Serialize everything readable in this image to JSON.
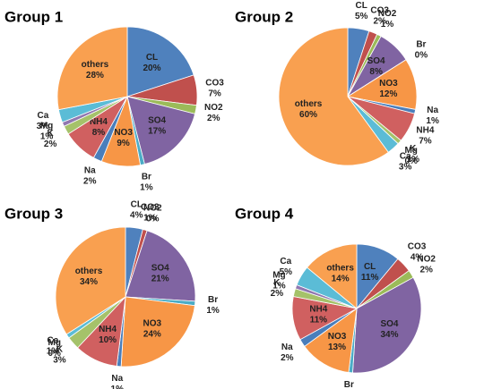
{
  "chart_data": [
    {
      "type": "pie",
      "title": "Group 1",
      "categories": [
        "CL",
        "CO3",
        "NO2",
        "SO4",
        "Br",
        "NO3",
        "Na",
        "NH4",
        "K",
        "Mg",
        "Ca",
        "others"
      ],
      "values": [
        20,
        7,
        2,
        17,
        1,
        9,
        2,
        8,
        2,
        1,
        3,
        28
      ],
      "value_labels": [
        "20%",
        "7%",
        "2%",
        "17%",
        "1%",
        "9%",
        "2%",
        "8%",
        "2%",
        "1%",
        "3%",
        "28%"
      ],
      "colors": [
        "#4f81bd",
        "#c0504d",
        "#9bbb59",
        "#8064a2",
        "#4bacc6",
        "#f79646",
        "#4a7ebb",
        "#d06060",
        "#a5c26a",
        "#9077b0",
        "#5bbcd6",
        "#f9a050"
      ]
    },
    {
      "type": "pie",
      "title": "Group 2",
      "categories": [
        "CL",
        "CO3",
        "NO2",
        "SO4",
        "Br",
        "NO3",
        "Na",
        "NH4",
        "K",
        "Mg",
        "Ca",
        "others"
      ],
      "values": [
        5,
        2,
        1,
        8,
        0,
        12,
        1,
        7,
        1,
        0,
        3,
        60
      ],
      "value_labels": [
        "5%",
        "2%",
        "1%",
        "8%",
        "0%",
        "12%",
        "1%",
        "7%",
        "1%",
        "0%",
        "3%",
        "60%"
      ],
      "colors": [
        "#4f81bd",
        "#c0504d",
        "#9bbb59",
        "#8064a2",
        "#4bacc6",
        "#f79646",
        "#4a7ebb",
        "#d06060",
        "#a5c26a",
        "#9077b0",
        "#5bbcd6",
        "#f9a050"
      ]
    },
    {
      "type": "pie",
      "title": "Group 3",
      "categories": [
        "CL",
        "CO3",
        "NO2",
        "SO4",
        "Br",
        "NO3",
        "Na",
        "NH4",
        "K",
        "Mg",
        "Ca",
        "others"
      ],
      "values": [
        4,
        1,
        0,
        21,
        1,
        24,
        1,
        10,
        3,
        0,
        1,
        34
      ],
      "value_labels": [
        "4%",
        "1%",
        "0%",
        "21%",
        "1%",
        "24%",
        "1%",
        "10%",
        "3%",
        "0%",
        "1%",
        "34%"
      ],
      "colors": [
        "#4f81bd",
        "#c0504d",
        "#9bbb59",
        "#8064a2",
        "#4bacc6",
        "#f79646",
        "#4a7ebb",
        "#d06060",
        "#a5c26a",
        "#9077b0",
        "#5bbcd6",
        "#f9a050"
      ]
    },
    {
      "type": "pie",
      "title": "Group 4",
      "categories": [
        "CL",
        "CO3",
        "NO2",
        "SO4",
        "Br",
        "NO3",
        "Na",
        "NH4",
        "K",
        "Mg",
        "Ca",
        "others"
      ],
      "values": [
        11,
        4,
        2,
        34,
        1,
        13,
        2,
        11,
        2,
        1,
        5,
        14
      ],
      "value_labels": [
        "11%",
        "4%",
        "2%",
        "34%",
        "1%",
        "13%",
        "2%",
        "11%",
        "2%",
        "1%",
        "5%",
        "14%"
      ],
      "colors": [
        "#4f81bd",
        "#c0504d",
        "#9bbb59",
        "#8064a2",
        "#4bacc6",
        "#f79646",
        "#4a7ebb",
        "#d06060",
        "#a5c26a",
        "#9077b0",
        "#5bbcd6",
        "#f9a050"
      ]
    }
  ]
}
